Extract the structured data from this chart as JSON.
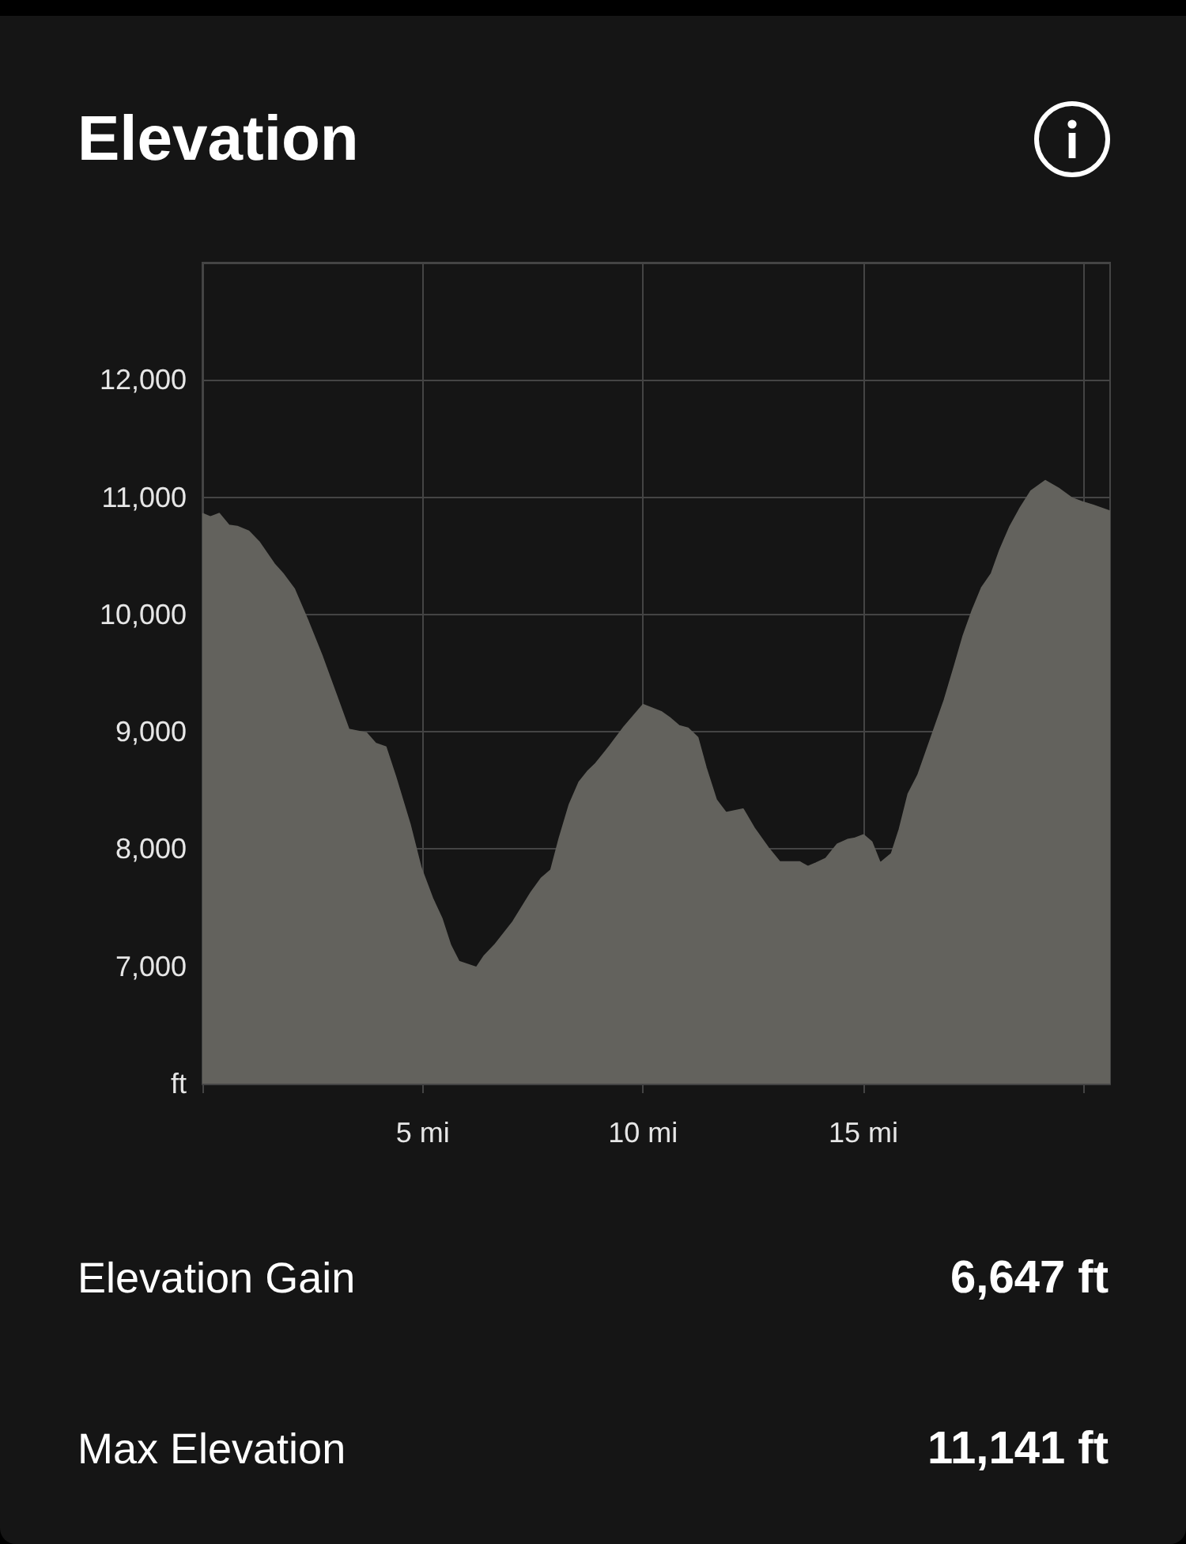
{
  "chart_data": {
    "type": "area",
    "title": "Elevation",
    "color": "#63625d",
    "x": [
      0,
      0.18,
      0.38,
      0.6,
      0.79,
      1.05,
      1.28,
      1.63,
      1.82,
      2.08,
      2.4,
      2.72,
      3.03,
      3.32,
      3.72,
      3.93,
      4.16,
      4.38,
      4.71,
      4.96,
      5.22,
      5.43,
      5.63,
      5.82,
      6.22,
      6.4,
      6.63,
      7.05,
      7.46,
      7.69,
      7.91,
      8.1,
      8.33,
      8.55,
      8.74,
      8.93,
      9.25,
      9.57,
      10.0,
      10.41,
      10.6,
      10.82,
      11.02,
      11.24,
      11.43,
      11.66,
      11.88,
      12.27,
      12.52,
      12.84,
      13.1,
      13.55,
      13.74,
      13.93,
      14.15,
      14.41,
      14.64,
      14.79,
      15.0,
      15.19,
      15.38,
      15.64,
      15.82,
      16.02,
      16.24,
      16.54,
      16.84,
      17.07,
      17.27,
      17.48,
      17.69,
      17.91,
      18.1,
      18.33,
      18.55,
      18.8,
      19.13,
      19.45,
      19.74,
      19.96,
      20.22,
      20.6
    ],
    "values": [
      10860,
      10830,
      10860,
      10760,
      10750,
      10710,
      10620,
      10430,
      10350,
      10220,
      9940,
      9640,
      9320,
      9020,
      8990,
      8900,
      8870,
      8620,
      8210,
      7840,
      7580,
      7410,
      7180,
      7040,
      6990,
      7090,
      7180,
      7380,
      7630,
      7750,
      7820,
      8090,
      8380,
      8570,
      8660,
      8730,
      8880,
      9040,
      9230,
      9170,
      9120,
      9050,
      9030,
      8950,
      8690,
      8420,
      8310,
      8340,
      8180,
      8010,
      7890,
      7890,
      7850,
      7880,
      7920,
      8040,
      8080,
      8090,
      8120,
      8060,
      7880,
      7960,
      8170,
      8470,
      8630,
      8950,
      9270,
      9560,
      9820,
      10040,
      10230,
      10350,
      10550,
      10750,
      10900,
      11050,
      11140,
      11070,
      10990,
      10960,
      10930,
      10880
    ],
    "xlim": [
      0,
      20.6
    ],
    "ylim": [
      6000,
      13000
    ],
    "xticks": [
      {
        "value": 0,
        "label": null
      },
      {
        "value": 5,
        "label": "5 mi"
      },
      {
        "value": 10,
        "label": "10 mi"
      },
      {
        "value": 15,
        "label": "15 mi"
      },
      {
        "value": 20,
        "label": null
      }
    ],
    "yticks": [
      {
        "value": 6000,
        "label": "ft"
      },
      {
        "value": 7000,
        "label": "7,000"
      },
      {
        "value": 8000,
        "label": "8,000"
      },
      {
        "value": 9000,
        "label": "9,000"
      },
      {
        "value": 10000,
        "label": "10,000"
      },
      {
        "value": 11000,
        "label": "11,000"
      },
      {
        "value": 12000,
        "label": "12,000"
      },
      {
        "value": 13000,
        "label": null
      }
    ],
    "grid": true,
    "annotations": [
      "Elevation Gain",
      "6,647 ft",
      "Max Elevation",
      "11,141 ft"
    ]
  }
}
